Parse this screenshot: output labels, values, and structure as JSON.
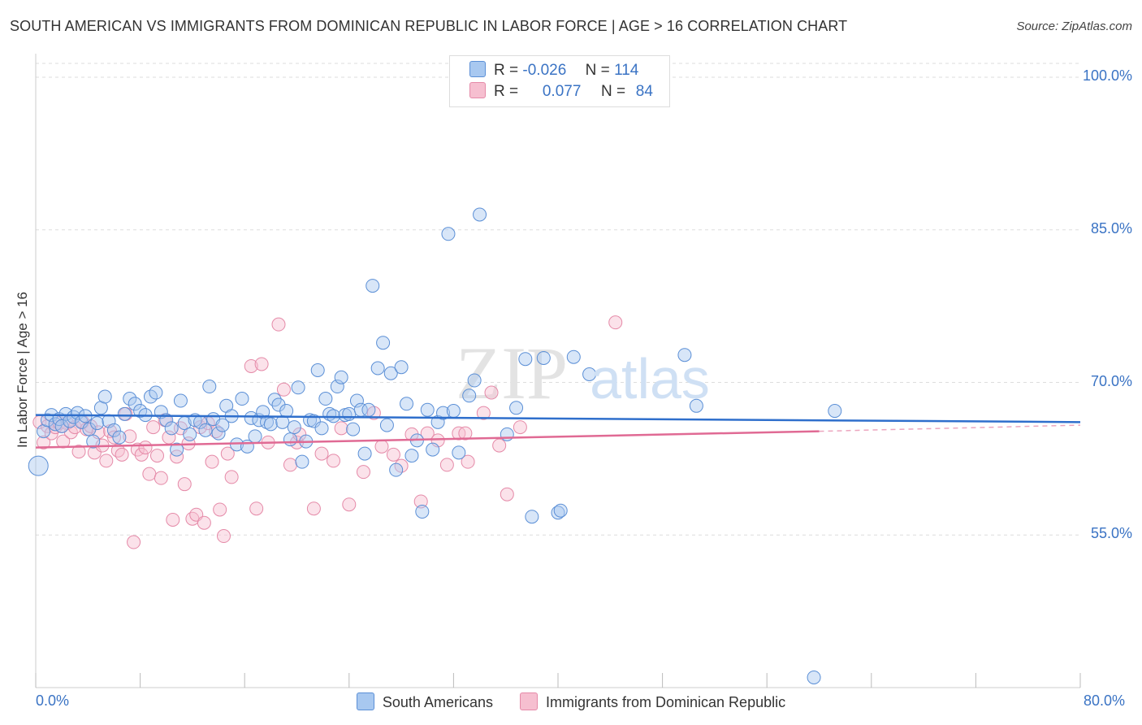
{
  "title": "SOUTH AMERICAN VS IMMIGRANTS FROM DOMINICAN REPUBLIC IN LABOR FORCE | AGE > 16 CORRELATION CHART",
  "source": "Source: ZipAtlas.com",
  "watermark": "ZIPatlas",
  "colors": {
    "blue_fill": "#a8c8f0",
    "blue_stroke": "#5b8fd6",
    "blue_line": "#2f6fcc",
    "pink_fill": "#f6bfd0",
    "pink_stroke": "#e58aa8",
    "pink_line": "#e06a94",
    "tick_text": "#3a73c4",
    "grid": "#dddddd"
  },
  "stats": {
    "series1": {
      "r_label": "R =",
      "r_value": "-0.026",
      "n_label": "N =",
      "n_value": "114"
    },
    "series2": {
      "r_label": "R =",
      "r_value": "0.077",
      "n_label": "N =",
      "n_value": "84"
    }
  },
  "legend": {
    "series1": "South Americans",
    "series2": "Immigrants from Dominican Republic"
  },
  "chart_data": {
    "type": "scatter",
    "title": "SOUTH AMERICAN VS IMMIGRANTS FROM DOMINICAN REPUBLIC IN LABOR FORCE | AGE > 16 CORRELATION CHART",
    "xlabel": "",
    "ylabel": "In Labor Force | Age > 16",
    "xlim": [
      0,
      80
    ],
    "ylim": [
      40,
      102
    ],
    "x_tick_labels": [
      "0.0%",
      "80.0%"
    ],
    "y_ticks": [
      55,
      70,
      85,
      100
    ],
    "y_tick_labels": [
      "55.0%",
      "70.0%",
      "85.0%",
      "100.0%"
    ],
    "grid": true,
    "legend_position": "bottom",
    "series": [
      {
        "name": "South Americans",
        "R": -0.026,
        "N": 114,
        "trend": {
          "x": [
            0,
            80
          ],
          "y": [
            66.8,
            66.1
          ]
        },
        "points": [
          [
            0.2,
            61.8
          ],
          [
            0.6,
            65.2
          ],
          [
            0.9,
            66.3
          ],
          [
            1.2,
            66.8
          ],
          [
            1.5,
            65.9
          ],
          [
            1.8,
            66.4
          ],
          [
            2.0,
            65.7
          ],
          [
            2.3,
            66.9
          ],
          [
            2.6,
            66.2
          ],
          [
            2.9,
            66.6
          ],
          [
            3.2,
            67.0
          ],
          [
            3.5,
            66.1
          ],
          [
            3.8,
            66.7
          ],
          [
            4.1,
            65.4
          ],
          [
            4.4,
            64.2
          ],
          [
            4.7,
            66.0
          ],
          [
            5.0,
            67.5
          ],
          [
            5.3,
            68.6
          ],
          [
            5.6,
            66.2
          ],
          [
            6.0,
            65.3
          ],
          [
            6.4,
            64.6
          ],
          [
            6.8,
            66.9
          ],
          [
            7.2,
            68.4
          ],
          [
            7.6,
            67.9
          ],
          [
            8.0,
            67.2
          ],
          [
            8.4,
            66.8
          ],
          [
            8.8,
            68.6
          ],
          [
            9.2,
            69.0
          ],
          [
            9.6,
            67.1
          ],
          [
            10.0,
            66.3
          ],
          [
            10.4,
            65.5
          ],
          [
            10.8,
            63.4
          ],
          [
            11.1,
            68.2
          ],
          [
            11.4,
            66.0
          ],
          [
            11.8,
            64.9
          ],
          [
            12.2,
            66.3
          ],
          [
            12.6,
            66.1
          ],
          [
            13.0,
            65.3
          ],
          [
            13.3,
            69.6
          ],
          [
            13.6,
            66.4
          ],
          [
            14.0,
            65.0
          ],
          [
            14.3,
            65.8
          ],
          [
            14.6,
            67.7
          ],
          [
            15.0,
            66.7
          ],
          [
            15.4,
            63.9
          ],
          [
            15.8,
            68.4
          ],
          [
            16.2,
            63.7
          ],
          [
            16.5,
            66.5
          ],
          [
            16.8,
            64.7
          ],
          [
            17.1,
            66.3
          ],
          [
            17.4,
            67.1
          ],
          [
            17.7,
            66.1
          ],
          [
            18.0,
            65.9
          ],
          [
            18.3,
            68.3
          ],
          [
            18.6,
            67.8
          ],
          [
            18.9,
            66.1
          ],
          [
            19.2,
            67.2
          ],
          [
            19.5,
            64.4
          ],
          [
            19.8,
            65.6
          ],
          [
            20.1,
            69.5
          ],
          [
            20.4,
            62.2
          ],
          [
            20.7,
            64.2
          ],
          [
            21.0,
            66.3
          ],
          [
            21.3,
            66.2
          ],
          [
            21.6,
            71.2
          ],
          [
            21.9,
            65.5
          ],
          [
            22.2,
            68.4
          ],
          [
            22.5,
            66.9
          ],
          [
            22.8,
            66.7
          ],
          [
            23.1,
            69.6
          ],
          [
            23.4,
            70.5
          ],
          [
            23.7,
            66.8
          ],
          [
            24.0,
            66.9
          ],
          [
            24.3,
            65.4
          ],
          [
            24.6,
            68.2
          ],
          [
            24.9,
            67.3
          ],
          [
            25.2,
            63.0
          ],
          [
            25.5,
            67.3
          ],
          [
            25.8,
            79.5
          ],
          [
            26.2,
            71.4
          ],
          [
            26.6,
            73.9
          ],
          [
            26.9,
            65.8
          ],
          [
            27.2,
            70.9
          ],
          [
            27.6,
            61.4
          ],
          [
            28.0,
            71.5
          ],
          [
            28.4,
            67.9
          ],
          [
            28.8,
            62.8
          ],
          [
            29.2,
            64.3
          ],
          [
            29.6,
            57.3
          ],
          [
            30.0,
            67.3
          ],
          [
            30.4,
            63.4
          ],
          [
            30.8,
            66.1
          ],
          [
            31.2,
            67.0
          ],
          [
            31.6,
            84.6
          ],
          [
            32.0,
            67.2
          ],
          [
            32.4,
            63.1
          ],
          [
            33.2,
            68.7
          ],
          [
            33.6,
            70.2
          ],
          [
            34.0,
            86.5
          ],
          [
            36.1,
            64.9
          ],
          [
            36.8,
            67.5
          ],
          [
            37.5,
            72.3
          ],
          [
            38.0,
            56.8
          ],
          [
            38.9,
            72.4
          ],
          [
            40.0,
            57.2
          ],
          [
            40.2,
            57.4
          ],
          [
            41.2,
            72.5
          ],
          [
            42.4,
            70.8
          ],
          [
            49.7,
            72.7
          ],
          [
            50.6,
            67.7
          ],
          [
            61.2,
            67.2
          ],
          [
            59.6,
            41.0
          ]
        ]
      },
      {
        "name": "Immigrants from Dominican Republic",
        "R": 0.077,
        "N": 84,
        "trend": {
          "x": [
            0,
            60
          ],
          "y": [
            63.6,
            65.2
          ]
        },
        "trend_dashed": {
          "x": [
            60,
            80
          ],
          "y": [
            65.2,
            65.8
          ]
        },
        "points": [
          [
            0.3,
            66.1
          ],
          [
            0.6,
            64.1
          ],
          [
            0.9,
            65.7
          ],
          [
            1.2,
            65.0
          ],
          [
            1.5,
            65.6
          ],
          [
            1.8,
            66.0
          ],
          [
            2.1,
            64.2
          ],
          [
            2.4,
            66.0
          ],
          [
            2.7,
            65.1
          ],
          [
            3.0,
            65.6
          ],
          [
            3.3,
            63.2
          ],
          [
            3.6,
            66.1
          ],
          [
            3.9,
            65.4
          ],
          [
            4.2,
            65.7
          ],
          [
            4.5,
            63.1
          ],
          [
            4.8,
            65.1
          ],
          [
            5.1,
            63.8
          ],
          [
            5.4,
            62.3
          ],
          [
            5.7,
            65.2
          ],
          [
            6.0,
            64.6
          ],
          [
            6.3,
            63.3
          ],
          [
            6.6,
            62.9
          ],
          [
            6.9,
            66.9
          ],
          [
            7.2,
            64.7
          ],
          [
            7.5,
            54.3
          ],
          [
            7.8,
            63.4
          ],
          [
            8.1,
            62.9
          ],
          [
            8.4,
            63.6
          ],
          [
            8.7,
            61.0
          ],
          [
            9.0,
            65.6
          ],
          [
            9.3,
            62.8
          ],
          [
            9.6,
            60.6
          ],
          [
            9.9,
            66.3
          ],
          [
            10.2,
            64.6
          ],
          [
            10.5,
            56.5
          ],
          [
            10.8,
            62.7
          ],
          [
            11.1,
            65.5
          ],
          [
            11.4,
            60.0
          ],
          [
            11.7,
            64.0
          ],
          [
            12.0,
            56.6
          ],
          [
            12.3,
            57.0
          ],
          [
            12.6,
            65.6
          ],
          [
            12.9,
            56.2
          ],
          [
            13.2,
            66.0
          ],
          [
            13.5,
            62.2
          ],
          [
            13.8,
            65.2
          ],
          [
            14.1,
            57.5
          ],
          [
            14.4,
            54.9
          ],
          [
            14.7,
            63.0
          ],
          [
            15.0,
            60.7
          ],
          [
            16.5,
            71.6
          ],
          [
            16.9,
            57.6
          ],
          [
            17.3,
            71.8
          ],
          [
            17.8,
            64.1
          ],
          [
            18.6,
            75.7
          ],
          [
            19.0,
            69.3
          ],
          [
            19.5,
            61.9
          ],
          [
            20.0,
            64.1
          ],
          [
            21.3,
            57.6
          ],
          [
            21.9,
            63.0
          ],
          [
            22.8,
            62.3
          ],
          [
            23.4,
            65.5
          ],
          [
            24.0,
            58.0
          ],
          [
            25.1,
            61.2
          ],
          [
            25.9,
            67.0
          ],
          [
            26.5,
            63.7
          ],
          [
            27.4,
            62.9
          ],
          [
            28.0,
            61.8
          ],
          [
            28.8,
            64.9
          ],
          [
            29.5,
            58.3
          ],
          [
            30.0,
            65.0
          ],
          [
            30.8,
            64.3
          ],
          [
            31.5,
            61.9
          ],
          [
            32.4,
            65.0
          ],
          [
            33.1,
            62.2
          ],
          [
            34.3,
            67.0
          ],
          [
            34.9,
            69.0
          ],
          [
            35.5,
            63.8
          ],
          [
            36.1,
            59.0
          ],
          [
            37.1,
            65.6
          ],
          [
            44.4,
            75.9
          ],
          [
            32.9,
            65.0
          ],
          [
            20.2,
            64.9
          ],
          [
            2.0,
            65.7
          ]
        ]
      }
    ]
  }
}
